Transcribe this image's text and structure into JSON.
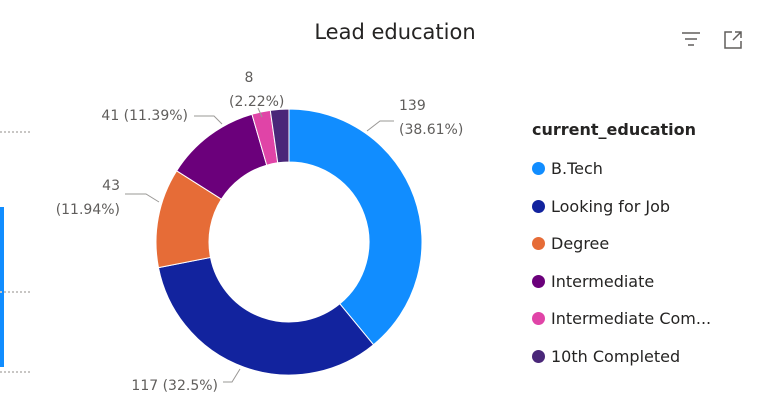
{
  "visual": {
    "title": "Lead education",
    "icons": [
      "filter-icon",
      "focus-mode-icon"
    ]
  },
  "legend": {
    "title": "current_education",
    "items": [
      "B.Tech",
      "Looking for Job",
      "Degree",
      "Intermediate",
      "Intermediate Com...",
      "10th Completed"
    ]
  },
  "chart_data": {
    "type": "pie",
    "variant": "donut",
    "title": "Lead education",
    "legend_title": "current_education",
    "legend_position": "right",
    "categories": [
      "B.Tech",
      "Looking for Job",
      "Degree",
      "Intermediate",
      "Intermediate Com...",
      "10th Completed"
    ],
    "values": [
      139,
      117,
      43,
      41,
      8,
      8
    ],
    "percent_labels": [
      "38.61%",
      "32.5%",
      "11.94%",
      "11.39%",
      "2.22%",
      ""
    ],
    "data_labels": [
      "139\n(38.61%)",
      "117 (32.5%)",
      "43\n(11.94%)",
      "41 (11.39%)",
      "8\n(2.22%)",
      ""
    ],
    "colors": [
      "#118dff",
      "#12239e",
      "#e66c37",
      "#6b007b",
      "#e044a7",
      "#4a2779"
    ]
  }
}
